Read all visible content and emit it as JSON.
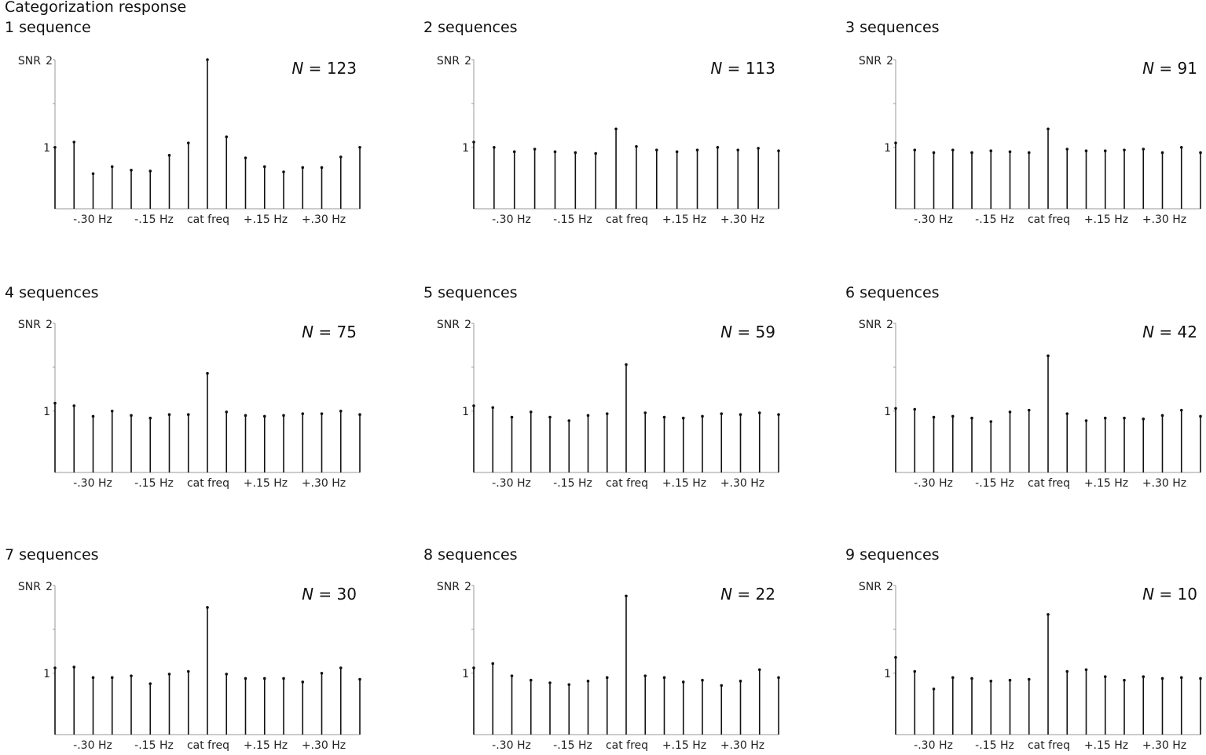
{
  "figure_title": "Categorization response",
  "chart_data": [
    {
      "type": "stem",
      "title": "1 sequence",
      "n_label": "N",
      "n_value": "123",
      "ylabel": "SNR",
      "yticks": [
        "1",
        "2"
      ],
      "ylim": [
        0.3,
        2.0
      ],
      "x_tick_labels": [
        "-.30 Hz",
        "-.15 Hz",
        "cat freq",
        "+.15 Hz",
        "+.30 Hz"
      ],
      "values": [
        1.0,
        1.06,
        0.7,
        0.78,
        0.74,
        0.73,
        0.91,
        1.05,
        2.0,
        1.12,
        0.88,
        0.78,
        0.72,
        0.77,
        0.77,
        0.89,
        1.0
      ]
    },
    {
      "type": "stem",
      "title": "2 sequences",
      "n_label": "N",
      "n_value": "113",
      "ylabel": "SNR",
      "yticks": [
        "1",
        "2"
      ],
      "ylim": [
        0.3,
        2.0
      ],
      "x_tick_labels": [
        "-.30 Hz",
        "-.15 Hz",
        "cat freq",
        "+.15 Hz",
        "+.30 Hz"
      ],
      "values": [
        1.06,
        1.0,
        0.95,
        0.98,
        0.95,
        0.94,
        0.93,
        1.21,
        1.01,
        0.97,
        0.95,
        0.97,
        1.0,
        0.97,
        0.99,
        0.96
      ]
    },
    {
      "type": "stem",
      "title": "3 sequences",
      "n_label": "N",
      "n_value": "91",
      "ylabel": "SNR",
      "yticks": [
        "1",
        "2"
      ],
      "ylim": [
        0.3,
        2.0
      ],
      "x_tick_labels": [
        "-.30 Hz",
        "-.15 Hz",
        "cat freq",
        "+.15 Hz",
        "+.30 Hz"
      ],
      "values": [
        1.05,
        0.97,
        0.94,
        0.97,
        0.94,
        0.96,
        0.95,
        0.94,
        1.21,
        0.98,
        0.96,
        0.96,
        0.97,
        0.98,
        0.94,
        1.0,
        0.94
      ]
    },
    {
      "type": "stem",
      "title": "4 sequences",
      "n_label": "N",
      "n_value": "75",
      "ylabel": "SNR",
      "yticks": [
        "1",
        "2"
      ],
      "ylim": [
        0.3,
        2.0
      ],
      "x_tick_labels": [
        "-.30 Hz",
        "-.15 Hz",
        "cat freq",
        "+.15 Hz",
        "+.30 Hz"
      ],
      "values": [
        1.09,
        1.06,
        0.94,
        1.0,
        0.95,
        0.92,
        0.96,
        0.96,
        1.43,
        0.99,
        0.95,
        0.94,
        0.95,
        0.97,
        0.97,
        1.0,
        0.96
      ]
    },
    {
      "type": "stem",
      "title": "5 sequences",
      "n_label": "N",
      "n_value": "59",
      "ylabel": "SNR",
      "yticks": [
        "1",
        "2"
      ],
      "ylim": [
        0.3,
        2.0
      ],
      "x_tick_labels": [
        "-.30 Hz",
        "-.15 Hz",
        "cat freq",
        "+.15 Hz",
        "+.30 Hz"
      ],
      "values": [
        1.06,
        1.04,
        0.93,
        0.99,
        0.93,
        0.89,
        0.95,
        0.97,
        1.53,
        0.98,
        0.93,
        0.92,
        0.94,
        0.97,
        0.96,
        0.98,
        0.96
      ]
    },
    {
      "type": "stem",
      "title": "6 sequences",
      "n_label": "N",
      "n_value": "42",
      "ylabel": "SNR",
      "yticks": [
        "1",
        "2"
      ],
      "ylim": [
        0.3,
        2.0
      ],
      "x_tick_labels": [
        "-.30 Hz",
        "-.15 Hz",
        "cat freq",
        "+.15 Hz",
        "+.30 Hz"
      ],
      "values": [
        1.03,
        1.02,
        0.93,
        0.94,
        0.92,
        0.88,
        0.99,
        1.01,
        1.63,
        0.97,
        0.89,
        0.92,
        0.92,
        0.91,
        0.95,
        1.01,
        0.94
      ]
    },
    {
      "type": "stem",
      "title": "7 sequences",
      "n_label": "N",
      "n_value": "30",
      "ylabel": "SNR",
      "yticks": [
        "1",
        "2"
      ],
      "ylim": [
        0.3,
        2.0
      ],
      "x_tick_labels": [
        "-.30 Hz",
        "-.15 Hz",
        "cat freq",
        "+.15 Hz",
        "+.30 Hz"
      ],
      "values": [
        1.06,
        1.07,
        0.95,
        0.95,
        0.97,
        0.88,
        0.99,
        1.02,
        1.75,
        0.99,
        0.94,
        0.94,
        0.94,
        0.9,
        1.0,
        1.06,
        0.93
      ]
    },
    {
      "type": "stem",
      "title": "8 sequences",
      "n_label": "N",
      "n_value": "22",
      "ylabel": "SNR",
      "yticks": [
        "1",
        "2"
      ],
      "ylim": [
        0.3,
        2.0
      ],
      "x_tick_labels": [
        "-.30 Hz",
        "-.15 Hz",
        "cat freq",
        "+.15 Hz",
        "+.30 Hz"
      ],
      "values": [
        1.06,
        1.11,
        0.97,
        0.92,
        0.89,
        0.87,
        0.91,
        0.95,
        1.88,
        0.97,
        0.95,
        0.9,
        0.92,
        0.86,
        0.91,
        1.04,
        0.95
      ]
    },
    {
      "type": "stem",
      "title": "9 sequences",
      "n_label": "N",
      "n_value": "10",
      "ylabel": "SNR",
      "yticks": [
        "1",
        "2"
      ],
      "ylim": [
        0.3,
        2.0
      ],
      "x_tick_labels": [
        "-.30 Hz",
        "-.15 Hz",
        "cat freq",
        "+.15 Hz",
        "+.30 Hz"
      ],
      "values": [
        1.18,
        1.02,
        0.82,
        0.95,
        0.94,
        0.91,
        0.92,
        0.93,
        1.67,
        1.02,
        1.04,
        0.96,
        0.92,
        0.96,
        0.94,
        0.95,
        0.94
      ]
    }
  ]
}
